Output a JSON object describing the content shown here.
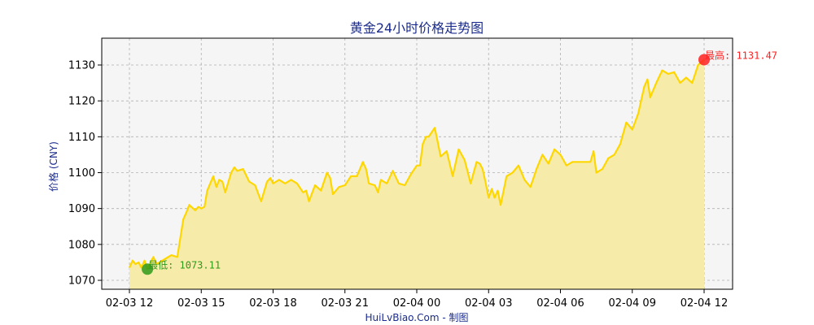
{
  "chart_data": {
    "type": "area",
    "title": "黄金24小时价格走势图",
    "ylabel": "价格 (CNY)",
    "xlabel": "",
    "footer": "HuiLvBiao.Com - 制图",
    "x_ticks": [
      "02-03 12",
      "02-03 15",
      "02-03 18",
      "02-03 21",
      "02-04 00",
      "02-04 03",
      "02-04 06",
      "02-04 09",
      "02-04 12"
    ],
    "y_ticks": [
      1070,
      1080,
      1090,
      1100,
      1110,
      1120,
      1130
    ],
    "xlim": [
      "02-03 12:00",
      "02-04 12:00"
    ],
    "ylim": [
      1067.5,
      1137
    ],
    "grid": true,
    "colors": {
      "line": "#FFD700",
      "fill": "#F7EBAA",
      "plot_bg": "#F5F5F5",
      "title": "#1B2C8E",
      "high": "#FF2020",
      "low": "#2E9A1A"
    },
    "annotations": {
      "high": {
        "label": "最高: 1131.47",
        "time": "02-04 12:00",
        "value": 1131.47
      },
      "low": {
        "label": "最低: 1073.11",
        "time": "02-03 12:45",
        "value": 1073.11
      }
    },
    "series": [
      {
        "time": [
          "02-03 12:00",
          "02-03 12:08",
          "02-03 12:15",
          "02-03 12:23",
          "02-03 12:30",
          "02-03 12:38",
          "02-03 12:45",
          "02-03 12:53",
          "02-03 13:00",
          "02-03 13:08",
          "02-03 13:15",
          "02-03 13:30",
          "02-03 13:45",
          "02-03 14:00",
          "02-03 14:15",
          "02-03 14:23",
          "02-03 14:30",
          "02-03 14:45",
          "02-03 14:53",
          "02-03 15:00",
          "02-03 15:08",
          "02-03 15:15",
          "02-03 15:30",
          "02-03 15:38",
          "02-03 15:45",
          "02-03 15:53",
          "02-03 16:00",
          "02-03 16:15",
          "02-03 16:23",
          "02-03 16:30",
          "02-03 16:45",
          "02-03 17:00",
          "02-03 17:15",
          "02-03 17:30",
          "02-03 17:45",
          "02-03 17:53",
          "02-03 18:00",
          "02-03 18:15",
          "02-03 18:30",
          "02-03 18:45",
          "02-03 19:00",
          "02-03 19:15",
          "02-03 19:23",
          "02-03 19:30",
          "02-03 19:45",
          "02-03 20:00",
          "02-03 20:15",
          "02-03 20:23",
          "02-03 20:30",
          "02-03 20:45",
          "02-03 21:00",
          "02-03 21:15",
          "02-03 21:30",
          "02-03 21:45",
          "02-03 21:53",
          "02-03 22:00",
          "02-03 22:15",
          "02-03 22:23",
          "02-03 22:30",
          "02-03 22:45",
          "02-03 23:00",
          "02-03 23:15",
          "02-03 23:30",
          "02-03 23:45",
          "02-04 00:00",
          "02-04 00:08",
          "02-04 00:15",
          "02-04 00:23",
          "02-04 00:30",
          "02-04 00:45",
          "02-04 01:00",
          "02-04 01:15",
          "02-04 01:30",
          "02-04 01:45",
          "02-04 02:00",
          "02-04 02:15",
          "02-04 02:30",
          "02-04 02:38",
          "02-04 02:45",
          "02-04 02:53",
          "02-04 03:00",
          "02-04 03:08",
          "02-04 03:15",
          "02-04 03:23",
          "02-04 03:30",
          "02-04 03:45",
          "02-04 04:00",
          "02-04 04:15",
          "02-04 04:30",
          "02-04 04:45",
          "02-04 05:00",
          "02-04 05:15",
          "02-04 05:30",
          "02-04 05:45",
          "02-04 06:00",
          "02-04 06:15",
          "02-04 06:30",
          "02-04 07:00",
          "02-04 07:15",
          "02-04 07:23",
          "02-04 07:30",
          "02-04 07:45",
          "02-04 08:00",
          "02-04 08:15",
          "02-04 08:30",
          "02-04 08:45",
          "02-04 09:00",
          "02-04 09:15",
          "02-04 09:30",
          "02-04 09:38",
          "02-04 09:45",
          "02-04 10:00",
          "02-04 10:15",
          "02-04 10:30",
          "02-04 10:45",
          "02-04 11:00",
          "02-04 11:15",
          "02-04 11:30",
          "02-04 11:45",
          "02-04 12:00"
        ],
        "values": [
          1073.5,
          1075.5,
          1074.5,
          1075.0,
          1073.5,
          1075.5,
          1073.11,
          1075.0,
          1076.5,
          1074.5,
          1075.0,
          1076.0,
          1077.0,
          1076.5,
          1087.0,
          1089.0,
          1091.0,
          1089.5,
          1090.5,
          1090.0,
          1090.5,
          1095.0,
          1099.0,
          1096.0,
          1098.0,
          1097.5,
          1094.5,
          1100.0,
          1101.5,
          1100.5,
          1101.0,
          1097.5,
          1096.5,
          1092.0,
          1097.5,
          1098.5,
          1097.0,
          1098.0,
          1097.0,
          1098.0,
          1097.0,
          1094.5,
          1095.0,
          1092.0,
          1096.5,
          1095.0,
          1100.0,
          1098.5,
          1094.0,
          1096.0,
          1096.5,
          1099.0,
          1099.0,
          1103.0,
          1101.0,
          1097.0,
          1096.5,
          1094.5,
          1098.0,
          1097.0,
          1100.5,
          1097.0,
          1096.5,
          1099.5,
          1102.0,
          1102.0,
          1108.0,
          1110.0,
          1110.0,
          1112.5,
          1104.5,
          1106.0,
          1099.0,
          1106.5,
          1103.5,
          1097.0,
          1103.0,
          1102.5,
          1101.0,
          1097.0,
          1093.0,
          1095.5,
          1093.0,
          1095.0,
          1091.0,
          1099.0,
          1100.0,
          1102.0,
          1098.0,
          1096.0,
          1101.0,
          1105.0,
          1102.5,
          1106.5,
          1105.0,
          1102.0,
          1103.0,
          1103.0,
          1103.0,
          1106.0,
          1100.0,
          1101.0,
          1104.0,
          1105.0,
          1108.0,
          1114.0,
          1112.0,
          1116.5,
          1124.0,
          1126.0,
          1121.0,
          1125.0,
          1128.5,
          1127.5,
          1128.0,
          1125.0,
          1126.5,
          1125.0,
          1130.0,
          1131.47
        ]
      }
    ]
  }
}
